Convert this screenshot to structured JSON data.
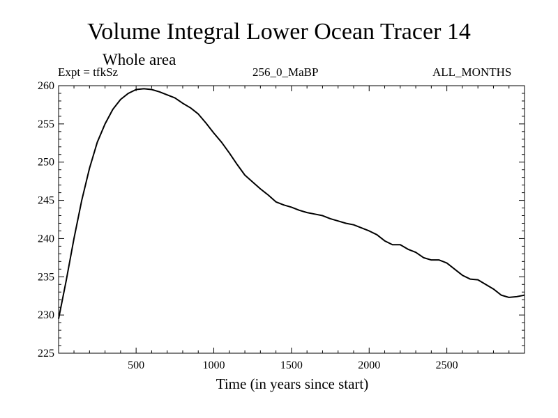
{
  "chart_data": {
    "type": "line",
    "title": "Volume Integral Lower Ocean Tracer 14",
    "subtitle": "Whole area",
    "experiment_label": "Expt = tfkSz",
    "run_label": "256_0_MaBP",
    "season_label": "ALL_MONTHS",
    "xlabel": "Time (in years since start)",
    "ylabel": "",
    "xlim": [
      1,
      3000
    ],
    "ylim": [
      225,
      260
    ],
    "xticks": [
      500,
      1000,
      1500,
      2000,
      2500
    ],
    "yticks": [
      225,
      230,
      235,
      240,
      245,
      250,
      255,
      260
    ],
    "grid": false,
    "series": [
      {
        "name": "Lower Ocean Tracer 14",
        "x": [
          1,
          50,
          100,
          150,
          200,
          250,
          300,
          350,
          400,
          450,
          500,
          550,
          600,
          650,
          700,
          750,
          800,
          850,
          900,
          950,
          1000,
          1050,
          1100,
          1150,
          1200,
          1250,
          1300,
          1350,
          1400,
          1450,
          1500,
          1550,
          1600,
          1650,
          1700,
          1750,
          1800,
          1850,
          1900,
          1950,
          2000,
          2050,
          2100,
          2150,
          2200,
          2250,
          2300,
          2350,
          2400,
          2450,
          2500,
          2550,
          2600,
          2650,
          2700,
          2750,
          2800,
          2850,
          2900,
          2950,
          3000
        ],
        "values": [
          229.5,
          234.5,
          240.0,
          245.0,
          249.2,
          252.6,
          255.0,
          256.9,
          258.2,
          259.0,
          259.5,
          259.6,
          259.5,
          259.2,
          258.8,
          258.4,
          257.7,
          257.1,
          256.3,
          255.1,
          253.8,
          252.6,
          251.2,
          249.7,
          248.3,
          247.4,
          246.5,
          245.7,
          244.8,
          244.4,
          244.1,
          243.7,
          243.4,
          243.2,
          243.0,
          242.6,
          242.3,
          242.0,
          241.8,
          241.4,
          241.0,
          240.5,
          239.7,
          239.2,
          239.2,
          238.6,
          238.2,
          237.5,
          237.2,
          237.2,
          236.8,
          236.0,
          235.2,
          234.7,
          234.6,
          234.0,
          233.4,
          232.6,
          232.3,
          232.4,
          232.6
        ]
      }
    ]
  }
}
